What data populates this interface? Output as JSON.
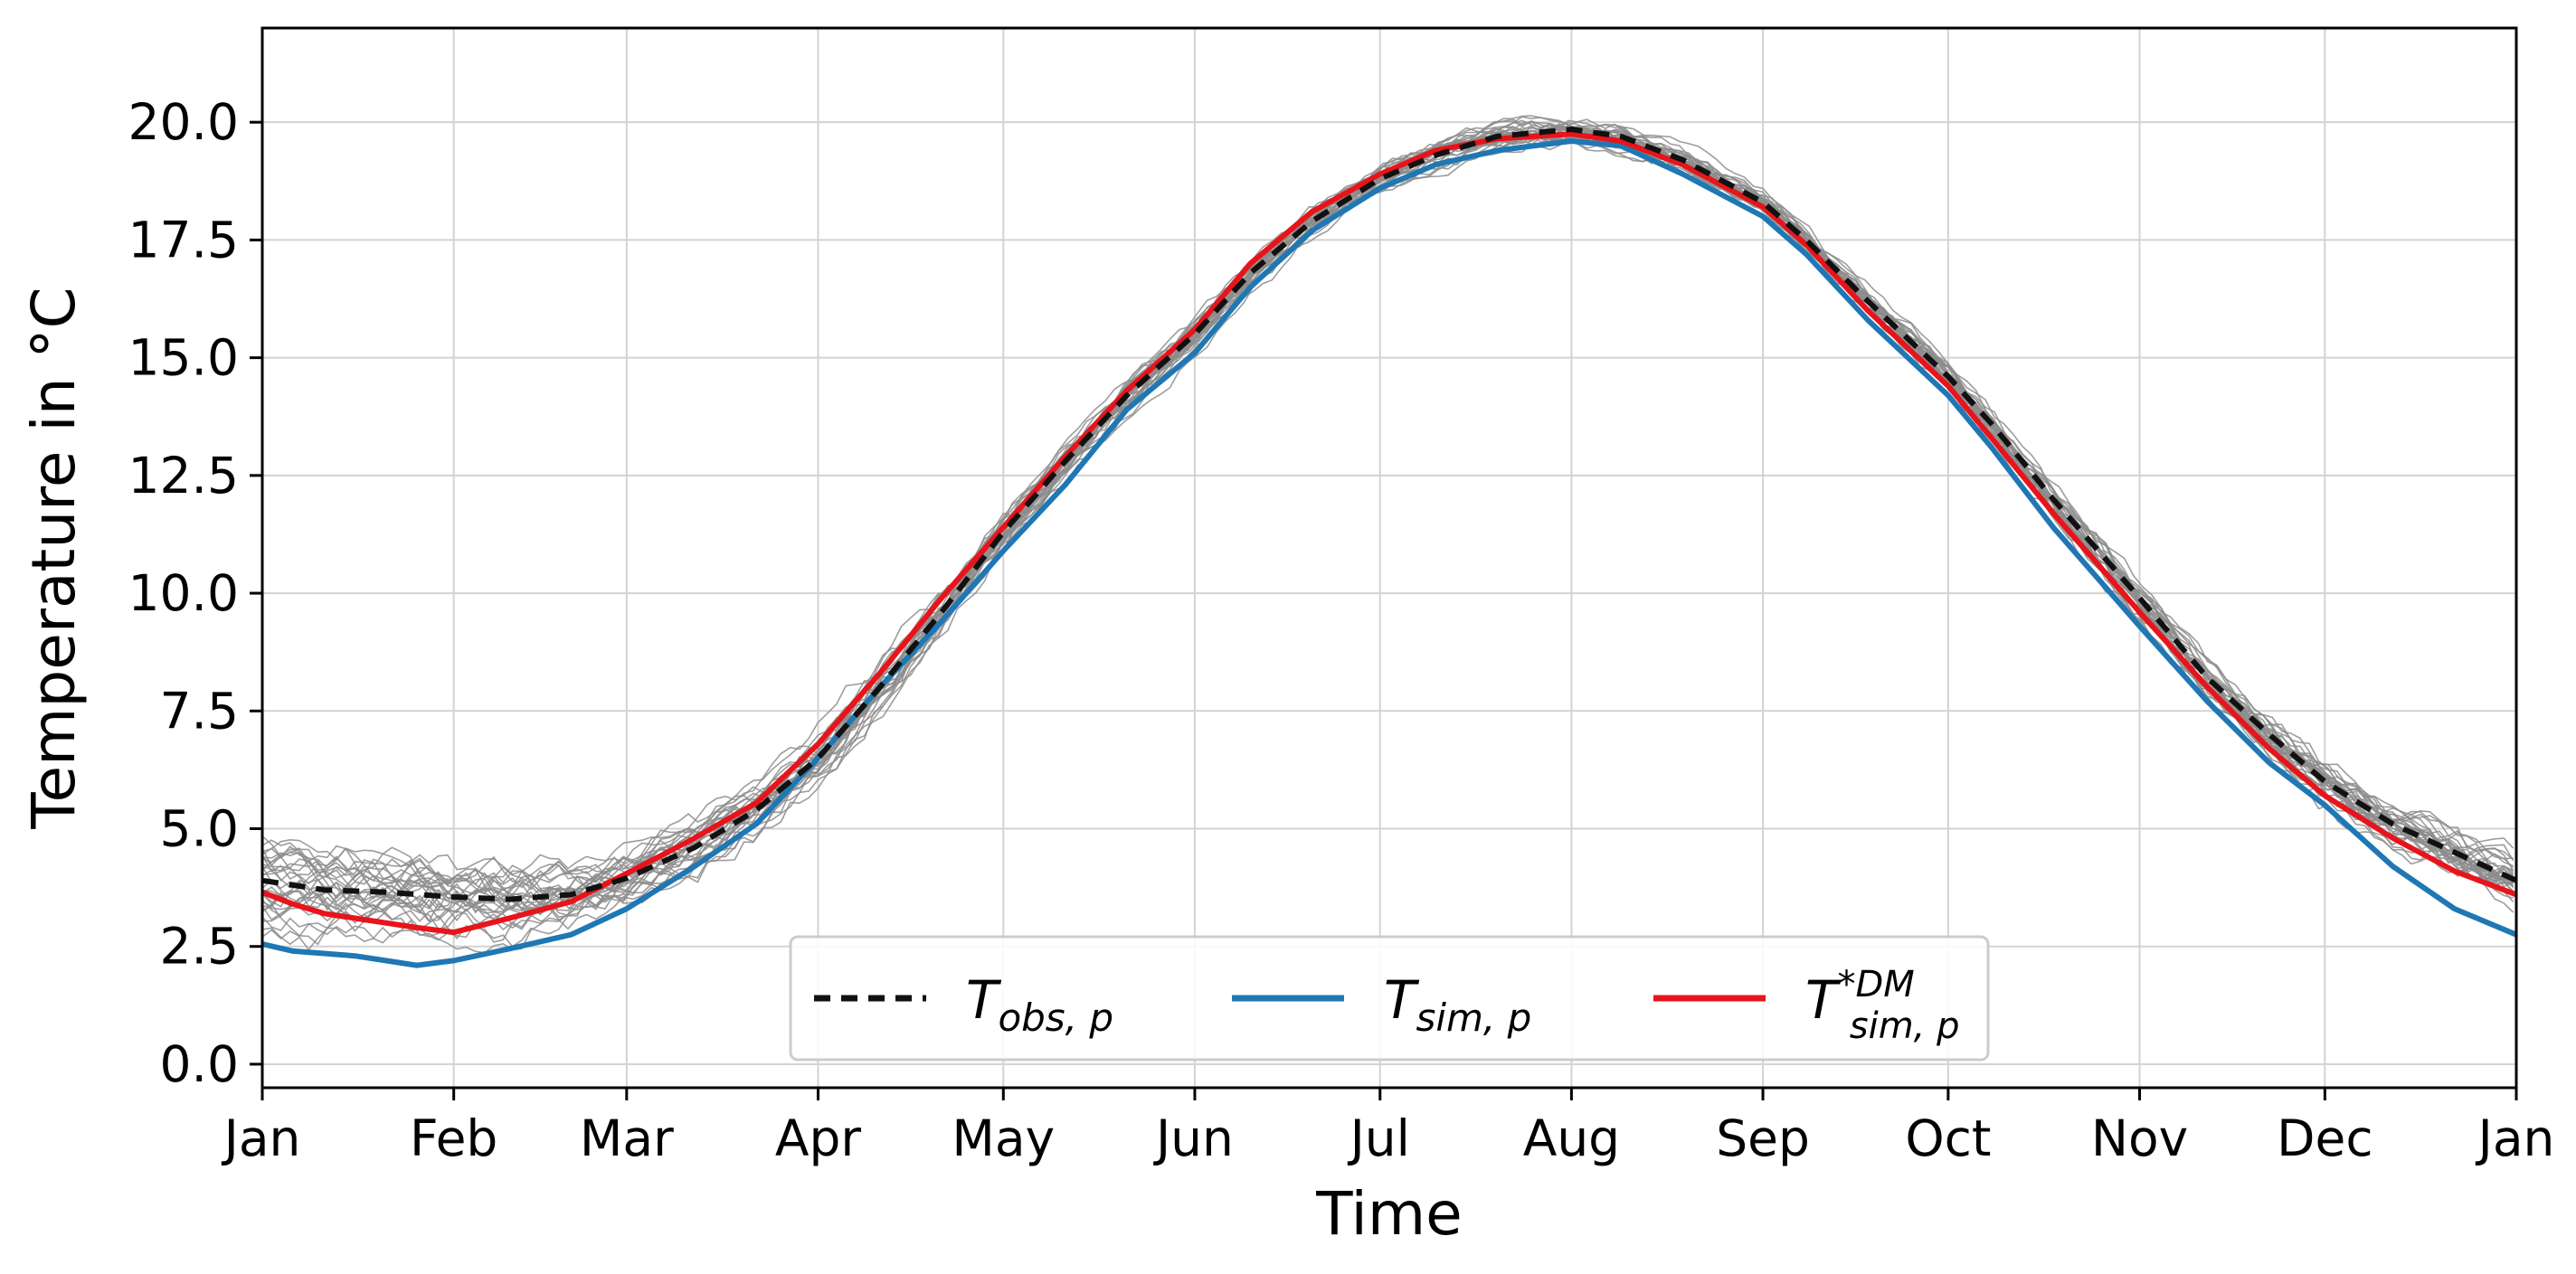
{
  "chart_data": {
    "type": "line",
    "xlabel": "Time",
    "ylabel": "Temperature in °C",
    "xlim": [
      0,
      365
    ],
    "ylim": [
      -0.5,
      22.0
    ],
    "grid": true,
    "x_ticks": [
      {
        "label": "Jan",
        "day": 0
      },
      {
        "label": "Feb",
        "day": 31
      },
      {
        "label": "Mar",
        "day": 59
      },
      {
        "label": "Apr",
        "day": 90
      },
      {
        "label": "May",
        "day": 120
      },
      {
        "label": "Jun",
        "day": 151
      },
      {
        "label": "Jul",
        "day": 181
      },
      {
        "label": "Aug",
        "day": 212
      },
      {
        "label": "Sep",
        "day": 243
      },
      {
        "label": "Oct",
        "day": 273
      },
      {
        "label": "Nov",
        "day": 304
      },
      {
        "label": "Dec",
        "day": 334
      },
      {
        "label": "Jan",
        "day": 365
      }
    ],
    "y_ticks": [
      {
        "label": "0.0",
        "value": 0.0
      },
      {
        "label": "2.5",
        "value": 2.5
      },
      {
        "label": "5.0",
        "value": 5.0
      },
      {
        "label": "7.5",
        "value": 7.5
      },
      {
        "label": "10.0",
        "value": 10.0
      },
      {
        "label": "12.5",
        "value": 12.5
      },
      {
        "label": "15.0",
        "value": 15.0
      },
      {
        "label": "17.5",
        "value": 17.5
      },
      {
        "label": "20.0",
        "value": 20.0
      }
    ],
    "legend": {
      "placement": "lower-center",
      "entries": [
        {
          "name": "T_obs,p",
          "base": "T",
          "sub": "obs, p",
          "sup": ""
        },
        {
          "name": "T_sim,p",
          "base": "T",
          "sub": "sim, p",
          "sup": ""
        },
        {
          "name": "T*DM_sim,p",
          "base": "T",
          "sub": "sim, p",
          "sup": "*DM"
        }
      ]
    },
    "ensemble": {
      "name": "ensemble members",
      "count": 30,
      "color": "#8c8c8c",
      "envelope_halfwidth": [
        {
          "x": 0,
          "w": 1.3
        },
        {
          "x": 31,
          "w": 1.4
        },
        {
          "x": 59,
          "w": 1.0
        },
        {
          "x": 90,
          "w": 1.0
        },
        {
          "x": 120,
          "w": 0.8
        },
        {
          "x": 151,
          "w": 0.6
        },
        {
          "x": 181,
          "w": 0.5
        },
        {
          "x": 212,
          "w": 0.6
        },
        {
          "x": 243,
          "w": 0.5
        },
        {
          "x": 273,
          "w": 0.7
        },
        {
          "x": 304,
          "w": 0.8
        },
        {
          "x": 334,
          "w": 0.9
        },
        {
          "x": 365,
          "w": 1.1
        }
      ]
    },
    "series": [
      {
        "name": "T_obs,p",
        "color": "#111111",
        "style": "dashed",
        "points": [
          [
            0,
            3.9
          ],
          [
            10,
            3.7
          ],
          [
            20,
            3.65
          ],
          [
            31,
            3.55
          ],
          [
            40,
            3.5
          ],
          [
            50,
            3.6
          ],
          [
            59,
            3.95
          ],
          [
            70,
            4.6
          ],
          [
            80,
            5.4
          ],
          [
            90,
            6.5
          ],
          [
            100,
            8.0
          ],
          [
            110,
            9.6
          ],
          [
            120,
            11.3
          ],
          [
            130,
            12.8
          ],
          [
            140,
            14.2
          ],
          [
            151,
            15.5
          ],
          [
            160,
            16.8
          ],
          [
            170,
            17.9
          ],
          [
            181,
            18.8
          ],
          [
            190,
            19.3
          ],
          [
            200,
            19.7
          ],
          [
            212,
            19.85
          ],
          [
            220,
            19.7
          ],
          [
            230,
            19.2
          ],
          [
            243,
            18.3
          ],
          [
            250,
            17.5
          ],
          [
            260,
            16.2
          ],
          [
            273,
            14.6
          ],
          [
            280,
            13.6
          ],
          [
            290,
            12.0
          ],
          [
            304,
            9.9
          ],
          [
            315,
            8.2
          ],
          [
            325,
            7.0
          ],
          [
            334,
            6.0
          ],
          [
            345,
            5.1
          ],
          [
            355,
            4.5
          ],
          [
            365,
            3.9
          ]
        ]
      },
      {
        "name": "T_sim,p",
        "color": "#1f77b4",
        "style": "solid",
        "points": [
          [
            0,
            2.55
          ],
          [
            5,
            2.4
          ],
          [
            10,
            2.35
          ],
          [
            15,
            2.3
          ],
          [
            20,
            2.2
          ],
          [
            25,
            2.1
          ],
          [
            31,
            2.2
          ],
          [
            40,
            2.45
          ],
          [
            50,
            2.75
          ],
          [
            59,
            3.3
          ],
          [
            70,
            4.2
          ],
          [
            80,
            5.1
          ],
          [
            90,
            6.5
          ],
          [
            100,
            8.0
          ],
          [
            110,
            9.4
          ],
          [
            120,
            10.9
          ],
          [
            130,
            12.3
          ],
          [
            140,
            13.9
          ],
          [
            151,
            15.1
          ],
          [
            160,
            16.5
          ],
          [
            170,
            17.7
          ],
          [
            181,
            18.6
          ],
          [
            190,
            19.1
          ],
          [
            200,
            19.4
          ],
          [
            212,
            19.6
          ],
          [
            220,
            19.5
          ],
          [
            230,
            18.9
          ],
          [
            243,
            18.0
          ],
          [
            250,
            17.2
          ],
          [
            260,
            15.8
          ],
          [
            273,
            14.2
          ],
          [
            280,
            13.1
          ],
          [
            290,
            11.4
          ],
          [
            304,
            9.3
          ],
          [
            315,
            7.7
          ],
          [
            325,
            6.4
          ],
          [
            334,
            5.5
          ],
          [
            345,
            4.2
          ],
          [
            355,
            3.3
          ],
          [
            365,
            2.75
          ]
        ]
      },
      {
        "name": "T*DM_sim,p",
        "color": "#e8141b",
        "style": "solid",
        "points": [
          [
            0,
            3.65
          ],
          [
            5,
            3.4
          ],
          [
            10,
            3.2
          ],
          [
            15,
            3.1
          ],
          [
            20,
            3.0
          ],
          [
            25,
            2.9
          ],
          [
            31,
            2.8
          ],
          [
            40,
            3.1
          ],
          [
            50,
            3.45
          ],
          [
            59,
            4.05
          ],
          [
            70,
            4.8
          ],
          [
            80,
            5.55
          ],
          [
            90,
            6.8
          ],
          [
            100,
            8.3
          ],
          [
            110,
            9.9
          ],
          [
            120,
            11.4
          ],
          [
            130,
            12.9
          ],
          [
            140,
            14.3
          ],
          [
            151,
            15.6
          ],
          [
            160,
            17.0
          ],
          [
            170,
            18.1
          ],
          [
            181,
            18.9
          ],
          [
            190,
            19.4
          ],
          [
            200,
            19.65
          ],
          [
            212,
            19.75
          ],
          [
            220,
            19.6
          ],
          [
            230,
            19.1
          ],
          [
            243,
            18.2
          ],
          [
            250,
            17.4
          ],
          [
            260,
            16.0
          ],
          [
            273,
            14.4
          ],
          [
            280,
            13.3
          ],
          [
            290,
            11.7
          ],
          [
            304,
            9.6
          ],
          [
            315,
            8.0
          ],
          [
            325,
            6.7
          ],
          [
            334,
            5.7
          ],
          [
            345,
            4.8
          ],
          [
            355,
            4.1
          ],
          [
            365,
            3.6
          ]
        ]
      }
    ]
  }
}
